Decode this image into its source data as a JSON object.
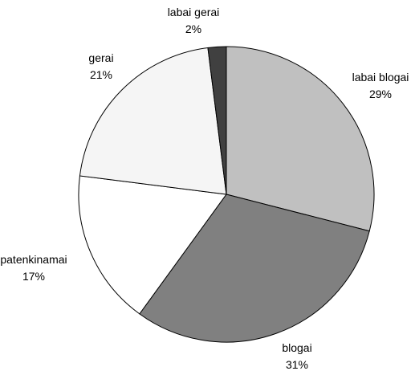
{
  "chart_data": {
    "type": "pie",
    "start_angle_deg": 0,
    "direction": "clockwise",
    "slices": [
      {
        "label": "labai blogai",
        "value": 29,
        "value_label": "29%",
        "color": "#c0c0c0"
      },
      {
        "label": "blogai",
        "value": 31,
        "value_label": "31%",
        "color": "#808080"
      },
      {
        "label": "patenkinamai",
        "value": 17,
        "value_label": "17%",
        "color": "#ffffff"
      },
      {
        "label": "gerai",
        "value": 21,
        "value_label": "21%",
        "color": "#f5f5f5"
      },
      {
        "label": "labai gerai",
        "value": 2,
        "value_label": "2%",
        "color": "#404040"
      }
    ]
  }
}
